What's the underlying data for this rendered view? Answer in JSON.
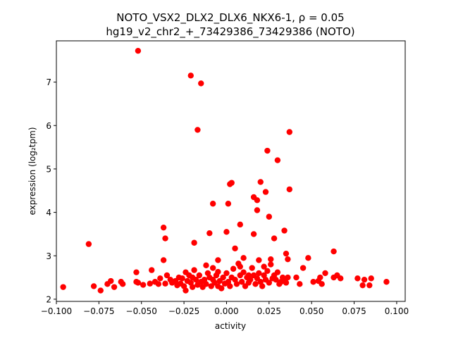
{
  "chart_data": {
    "type": "scatter",
    "title_line1": "NOTO_VSX2_DLX2_DLX6_NKX6-1, ρ = 0.05",
    "title_line2": "hg19_v2_chr2_+_73429386_73429386 (NOTO)",
    "xlabel": "activity",
    "ylabel": "expression (log₂tpm)",
    "xlim": [
      -0.1,
      0.105
    ],
    "ylim": [
      1.95,
      7.95
    ],
    "xticks": [
      -0.1,
      -0.075,
      -0.05,
      -0.025,
      0.0,
      0.025,
      0.05,
      0.075,
      0.1
    ],
    "xtick_labels": [
      "−0.100",
      "−0.075",
      "−0.050",
      "−0.025",
      "0.000",
      "0.025",
      "0.050",
      "0.075",
      "0.100"
    ],
    "yticks": [
      2,
      3,
      4,
      5,
      6,
      7
    ],
    "ytick_labels": [
      "2",
      "3",
      "4",
      "5",
      "6",
      "7"
    ],
    "marker_color": "#ff0000",
    "grid": false,
    "points": [
      [
        -0.096,
        2.28
      ],
      [
        -0.081,
        3.27
      ],
      [
        -0.078,
        2.3
      ],
      [
        -0.074,
        2.2
      ],
      [
        -0.07,
        2.35
      ],
      [
        -0.068,
        2.42
      ],
      [
        -0.066,
        2.28
      ],
      [
        -0.062,
        2.4
      ],
      [
        -0.061,
        2.35
      ],
      [
        -0.053,
        2.62
      ],
      [
        -0.053,
        2.4
      ],
      [
        -0.052,
        2.38
      ],
      [
        -0.049,
        2.33
      ],
      [
        -0.045,
        2.36
      ],
      [
        -0.044,
        2.67
      ],
      [
        -0.042,
        2.4
      ],
      [
        -0.04,
        2.35
      ],
      [
        -0.039,
        2.48
      ],
      [
        -0.037,
        2.9
      ],
      [
        -0.037,
        3.65
      ],
      [
        -0.036,
        3.4
      ],
      [
        -0.036,
        2.36
      ],
      [
        -0.035,
        2.55
      ],
      [
        -0.033,
        2.45
      ],
      [
        -0.032,
        2.38
      ],
      [
        -0.03,
        2.42
      ],
      [
        -0.029,
        2.32
      ],
      [
        -0.028,
        2.5
      ],
      [
        -0.027,
        2.36
      ],
      [
        -0.026,
        2.48
      ],
      [
        -0.025,
        2.3
      ],
      [
        -0.024,
        2.62
      ],
      [
        -0.024,
        2.2
      ],
      [
        -0.023,
        2.42
      ],
      [
        -0.022,
        2.55
      ],
      [
        -0.021,
        2.38
      ],
      [
        -0.02,
        2.28
      ],
      [
        -0.02,
        2.5
      ],
      [
        -0.019,
        3.3
      ],
      [
        -0.019,
        2.67
      ],
      [
        -0.018,
        2.45
      ],
      [
        -0.017,
        2.33
      ],
      [
        -0.016,
        2.55
      ],
      [
        -0.015,
        2.4
      ],
      [
        -0.014,
        2.28
      ],
      [
        -0.013,
        2.45
      ],
      [
        -0.012,
        2.35
      ],
      [
        -0.011,
        2.6
      ],
      [
        -0.01,
        2.5
      ],
      [
        -0.009,
        2.3
      ],
      [
        -0.008,
        2.72
      ],
      [
        -0.008,
        2.45
      ],
      [
        -0.007,
        2.38
      ],
      [
        -0.006,
        2.55
      ],
      [
        -0.005,
        2.63
      ],
      [
        -0.005,
        2.3
      ],
      [
        -0.004,
        2.42
      ],
      [
        -0.003,
        2.25
      ],
      [
        -0.002,
        2.5
      ],
      [
        -0.001,
        2.36
      ],
      [
        0.0,
        2.6
      ],
      [
        0.001,
        2.4
      ],
      [
        0.002,
        2.3
      ],
      [
        0.003,
        2.5
      ],
      [
        0.004,
        2.7
      ],
      [
        0.005,
        2.45
      ],
      [
        0.006,
        2.35
      ],
      [
        0.007,
        2.82
      ],
      [
        0.008,
        2.55
      ],
      [
        0.009,
        2.4
      ],
      [
        0.01,
        2.62
      ],
      [
        0.011,
        2.3
      ],
      [
        0.012,
        2.5
      ],
      [
        0.013,
        2.38
      ],
      [
        0.014,
        2.45
      ],
      [
        0.015,
        2.72
      ],
      [
        0.016,
        2.55
      ],
      [
        0.017,
        2.35
      ],
      [
        0.018,
        2.48
      ],
      [
        0.019,
        2.6
      ],
      [
        0.02,
        2.4
      ],
      [
        0.021,
        2.3
      ],
      [
        0.022,
        2.55
      ],
      [
        0.023,
        2.45
      ],
      [
        0.024,
        2.65
      ],
      [
        0.025,
        2.38
      ],
      [
        0.026,
        2.8
      ],
      [
        0.027,
        2.48
      ],
      [
        0.028,
        2.55
      ],
      [
        0.029,
        2.45
      ],
      [
        0.03,
        2.62
      ],
      [
        0.031,
        2.35
      ],
      [
        0.032,
        2.4
      ],
      [
        0.033,
        2.5
      ],
      [
        0.034,
        2.45
      ],
      [
        0.035,
        2.38
      ],
      [
        0.036,
        2.5
      ],
      [
        0.036,
        2.92
      ],
      [
        0.041,
        2.5
      ],
      [
        0.043,
        2.35
      ],
      [
        0.045,
        2.72
      ],
      [
        0.048,
        2.95
      ],
      [
        0.051,
        2.4
      ],
      [
        0.054,
        2.42
      ],
      [
        0.055,
        2.5
      ],
      [
        0.056,
        2.35
      ],
      [
        0.058,
        2.6
      ],
      [
        0.063,
        3.1
      ],
      [
        0.063,
        2.5
      ],
      [
        0.065,
        2.55
      ],
      [
        0.067,
        2.48
      ],
      [
        0.077,
        2.48
      ],
      [
        0.08,
        2.32
      ],
      [
        0.081,
        2.45
      ],
      [
        0.084,
        2.32
      ],
      [
        0.085,
        2.48
      ],
      [
        0.094,
        2.4
      ],
      [
        -0.052,
        7.72
      ],
      [
        -0.021,
        7.15
      ],
      [
        -0.017,
        5.9
      ],
      [
        -0.015,
        6.97
      ],
      [
        -0.01,
        3.52
      ],
      [
        -0.008,
        4.2
      ],
      [
        -0.005,
        2.9
      ],
      [
        0.0,
        3.55
      ],
      [
        0.001,
        4.2
      ],
      [
        0.003,
        4.68
      ],
      [
        0.005,
        3.17
      ],
      [
        0.008,
        2.75
      ],
      [
        0.008,
        3.72
      ],
      [
        0.01,
        2.95
      ],
      [
        0.013,
        2.55
      ],
      [
        0.016,
        3.5
      ],
      [
        0.016,
        4.35
      ],
      [
        0.018,
        4.05
      ],
      [
        0.018,
        4.28
      ],
      [
        0.019,
        2.9
      ],
      [
        0.02,
        4.7
      ],
      [
        0.022,
        2.75
      ],
      [
        0.023,
        4.47
      ],
      [
        0.024,
        5.42
      ],
      [
        0.025,
        3.9
      ],
      [
        0.026,
        2.92
      ],
      [
        0.028,
        3.4
      ],
      [
        0.03,
        5.2
      ],
      [
        0.034,
        3.58
      ],
      [
        0.035,
        3.05
      ],
      [
        0.037,
        5.85
      ],
      [
        0.037,
        4.53
      ],
      [
        0.002,
        4.65
      ],
      [
        -0.012,
        2.78
      ]
    ]
  }
}
